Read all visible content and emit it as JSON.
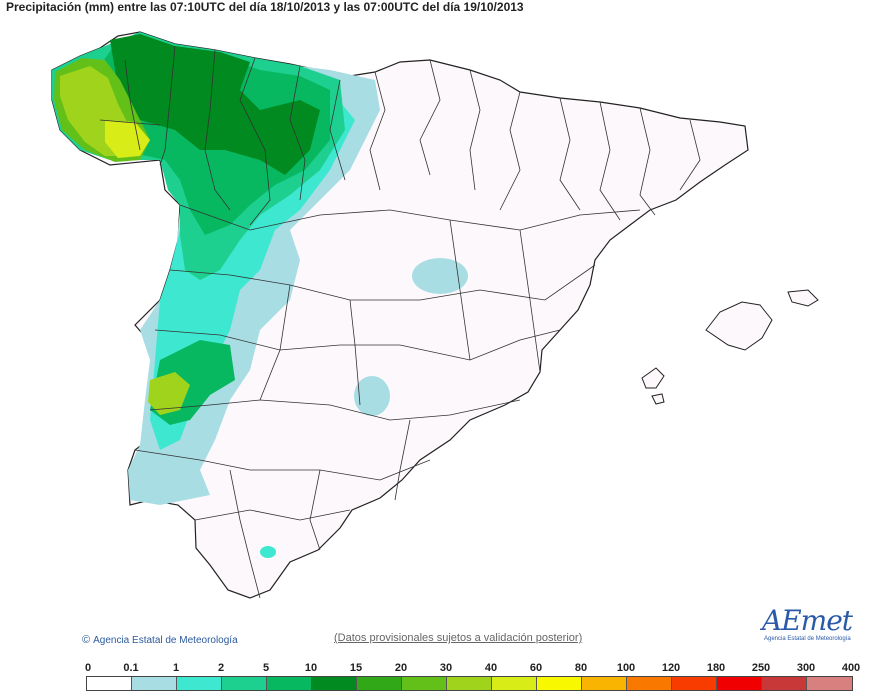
{
  "title": "Precipitación (mm) entre las 07:10UTC del día 18/10/2013 y las 07:00UTC del día 19/10/2013",
  "copyright": "Agencia Estatal de Meteorología",
  "copyright_icon": "copyright-icon",
  "disclaimer": "(Datos provisionales sujetos a validación posterior)",
  "logo": {
    "word": "AEmet",
    "subtitle": "Agencia Estatal de Meteorología"
  },
  "scale": {
    "ticks": [
      "0",
      "0.1",
      "1",
      "2",
      "5",
      "10",
      "15",
      "20",
      "30",
      "40",
      "60",
      "80",
      "100",
      "120",
      "180",
      "250",
      "300",
      "400"
    ],
    "colors": [
      "#ffffff",
      "#a8dde4",
      "#3ee8d0",
      "#1ed090",
      "#08b860",
      "#008a20",
      "#30a818",
      "#62c018",
      "#a0d41c",
      "#d8ec18",
      "#f8f800",
      "#f8b400",
      "#f87800",
      "#f83c00",
      "#f00000",
      "#c83838",
      "#d88080",
      "#f0c0c0"
    ]
  },
  "map_colors": {
    "land": "#fcf8fc",
    "outline": "#222222",
    "light_blue": "#a8dde4",
    "cyan": "#3ee8d0",
    "green_light": "#1ed090",
    "green": "#08b860",
    "green_dark": "#008a20",
    "green_yellow": "#62c018",
    "lime": "#a0d41c",
    "yellow": "#d8ec18"
  }
}
